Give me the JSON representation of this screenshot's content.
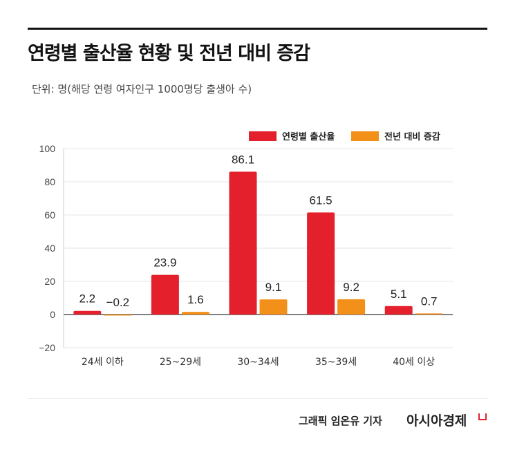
{
  "chart_data": {
    "type": "bar",
    "title": "연령별 출산율 현황 및 전년 대비 증감",
    "subtitle": "단위: 명(해당 연령 여자인구 1000명당 출생아 수)",
    "categories": [
      "24세 이하",
      "25~29세",
      "30~34세",
      "35~39세",
      "40세 이상"
    ],
    "series": [
      {
        "name": "연령별 출산율",
        "color": "#e3202c",
        "values": [
          2.2,
          23.9,
          86.1,
          61.5,
          5.1
        ],
        "labels": [
          "2.2",
          "23.9",
          "86.1",
          "61.5",
          "5.1"
        ]
      },
      {
        "name": "전년 대비 증감",
        "color": "#f39019",
        "values": [
          -0.2,
          1.6,
          9.1,
          9.2,
          0.7
        ],
        "labels": [
          "−0.2",
          "1.6",
          "9.1",
          "9.2",
          "0.7"
        ]
      }
    ],
    "ylim": [
      -20,
      100
    ],
    "yticks": [
      "100",
      "80",
      "60",
      "40",
      "20",
      "0",
      "−20"
    ],
    "ytick_values": [
      100,
      80,
      60,
      40,
      20,
      0,
      -20
    ],
    "grid": true,
    "legend": "top-right"
  },
  "footer": {
    "credit": "그래픽  임온유 기자",
    "logo": "아시아경제"
  }
}
